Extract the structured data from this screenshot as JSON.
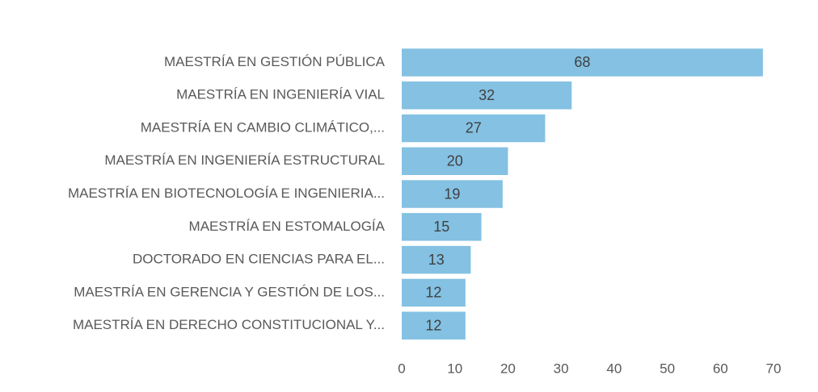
{
  "chart_data": {
    "type": "barh",
    "categories": [
      "MAESTRÍA EN GESTIÓN PÚBLICA",
      "MAESTRÍA EN INGENIERÍA VIAL",
      "MAESTRÍA EN CAMBIO CLIMÁTICO,...",
      "MAESTRÍA EN INGENIERÍA ESTRUCTURAL",
      "MAESTRÍA EN BIOTECNOLOGÍA E INGENIERIA...",
      "MAESTRÍA EN ESTOMALOGÍA",
      "DOCTORADO EN CIENCIAS PARA EL...",
      "MAESTRÍA EN GERENCIA Y GESTIÓN DE LOS...",
      "MAESTRÍA EN DERECHO CONSTITUCIONAL Y..."
    ],
    "values": [
      68,
      32,
      27,
      20,
      19,
      15,
      13,
      12,
      12
    ],
    "color": "#84c1e3",
    "xlim": [
      0,
      70
    ],
    "xticks": [
      0,
      10,
      20,
      30,
      40,
      50,
      60,
      70
    ],
    "grid": false
  }
}
